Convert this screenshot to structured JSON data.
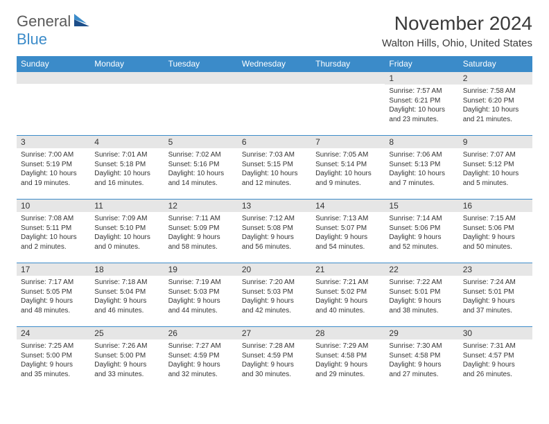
{
  "logo": {
    "word1": "General",
    "word2": "Blue"
  },
  "title": "November 2024",
  "location": "Walton Hills, Ohio, United States",
  "colors": {
    "header_bg": "#3b8bc9",
    "header_text": "#ffffff",
    "daynum_bg": "#e6e6e6",
    "border": "#3b8bc9",
    "text": "#333333",
    "page_bg": "#ffffff",
    "logo_gray": "#5a5a5a",
    "logo_blue": "#3b8bc9"
  },
  "typography": {
    "title_fontsize": 28,
    "location_fontsize": 15,
    "header_fontsize": 12,
    "daynum_fontsize": 12,
    "body_fontsize": 10
  },
  "layout": {
    "cols": 7,
    "rows": 5,
    "aspect": "792x612"
  },
  "dayNames": [
    "Sunday",
    "Monday",
    "Tuesday",
    "Wednesday",
    "Thursday",
    "Friday",
    "Saturday"
  ],
  "weeks": [
    [
      {
        "blank": true
      },
      {
        "blank": true
      },
      {
        "blank": true
      },
      {
        "blank": true
      },
      {
        "blank": true
      },
      {
        "n": "1",
        "sunrise": "Sunrise: 7:57 AM",
        "sunset": "Sunset: 6:21 PM",
        "day1": "Daylight: 10 hours",
        "day2": "and 23 minutes."
      },
      {
        "n": "2",
        "sunrise": "Sunrise: 7:58 AM",
        "sunset": "Sunset: 6:20 PM",
        "day1": "Daylight: 10 hours",
        "day2": "and 21 minutes."
      }
    ],
    [
      {
        "n": "3",
        "sunrise": "Sunrise: 7:00 AM",
        "sunset": "Sunset: 5:19 PM",
        "day1": "Daylight: 10 hours",
        "day2": "and 19 minutes."
      },
      {
        "n": "4",
        "sunrise": "Sunrise: 7:01 AM",
        "sunset": "Sunset: 5:18 PM",
        "day1": "Daylight: 10 hours",
        "day2": "and 16 minutes."
      },
      {
        "n": "5",
        "sunrise": "Sunrise: 7:02 AM",
        "sunset": "Sunset: 5:16 PM",
        "day1": "Daylight: 10 hours",
        "day2": "and 14 minutes."
      },
      {
        "n": "6",
        "sunrise": "Sunrise: 7:03 AM",
        "sunset": "Sunset: 5:15 PM",
        "day1": "Daylight: 10 hours",
        "day2": "and 12 minutes."
      },
      {
        "n": "7",
        "sunrise": "Sunrise: 7:05 AM",
        "sunset": "Sunset: 5:14 PM",
        "day1": "Daylight: 10 hours",
        "day2": "and 9 minutes."
      },
      {
        "n": "8",
        "sunrise": "Sunrise: 7:06 AM",
        "sunset": "Sunset: 5:13 PM",
        "day1": "Daylight: 10 hours",
        "day2": "and 7 minutes."
      },
      {
        "n": "9",
        "sunrise": "Sunrise: 7:07 AM",
        "sunset": "Sunset: 5:12 PM",
        "day1": "Daylight: 10 hours",
        "day2": "and 5 minutes."
      }
    ],
    [
      {
        "n": "10",
        "sunrise": "Sunrise: 7:08 AM",
        "sunset": "Sunset: 5:11 PM",
        "day1": "Daylight: 10 hours",
        "day2": "and 2 minutes."
      },
      {
        "n": "11",
        "sunrise": "Sunrise: 7:09 AM",
        "sunset": "Sunset: 5:10 PM",
        "day1": "Daylight: 10 hours",
        "day2": "and 0 minutes."
      },
      {
        "n": "12",
        "sunrise": "Sunrise: 7:11 AM",
        "sunset": "Sunset: 5:09 PM",
        "day1": "Daylight: 9 hours",
        "day2": "and 58 minutes."
      },
      {
        "n": "13",
        "sunrise": "Sunrise: 7:12 AM",
        "sunset": "Sunset: 5:08 PM",
        "day1": "Daylight: 9 hours",
        "day2": "and 56 minutes."
      },
      {
        "n": "14",
        "sunrise": "Sunrise: 7:13 AM",
        "sunset": "Sunset: 5:07 PM",
        "day1": "Daylight: 9 hours",
        "day2": "and 54 minutes."
      },
      {
        "n": "15",
        "sunrise": "Sunrise: 7:14 AM",
        "sunset": "Sunset: 5:06 PM",
        "day1": "Daylight: 9 hours",
        "day2": "and 52 minutes."
      },
      {
        "n": "16",
        "sunrise": "Sunrise: 7:15 AM",
        "sunset": "Sunset: 5:06 PM",
        "day1": "Daylight: 9 hours",
        "day2": "and 50 minutes."
      }
    ],
    [
      {
        "n": "17",
        "sunrise": "Sunrise: 7:17 AM",
        "sunset": "Sunset: 5:05 PM",
        "day1": "Daylight: 9 hours",
        "day2": "and 48 minutes."
      },
      {
        "n": "18",
        "sunrise": "Sunrise: 7:18 AM",
        "sunset": "Sunset: 5:04 PM",
        "day1": "Daylight: 9 hours",
        "day2": "and 46 minutes."
      },
      {
        "n": "19",
        "sunrise": "Sunrise: 7:19 AM",
        "sunset": "Sunset: 5:03 PM",
        "day1": "Daylight: 9 hours",
        "day2": "and 44 minutes."
      },
      {
        "n": "20",
        "sunrise": "Sunrise: 7:20 AM",
        "sunset": "Sunset: 5:03 PM",
        "day1": "Daylight: 9 hours",
        "day2": "and 42 minutes."
      },
      {
        "n": "21",
        "sunrise": "Sunrise: 7:21 AM",
        "sunset": "Sunset: 5:02 PM",
        "day1": "Daylight: 9 hours",
        "day2": "and 40 minutes."
      },
      {
        "n": "22",
        "sunrise": "Sunrise: 7:22 AM",
        "sunset": "Sunset: 5:01 PM",
        "day1": "Daylight: 9 hours",
        "day2": "and 38 minutes."
      },
      {
        "n": "23",
        "sunrise": "Sunrise: 7:24 AM",
        "sunset": "Sunset: 5:01 PM",
        "day1": "Daylight: 9 hours",
        "day2": "and 37 minutes."
      }
    ],
    [
      {
        "n": "24",
        "sunrise": "Sunrise: 7:25 AM",
        "sunset": "Sunset: 5:00 PM",
        "day1": "Daylight: 9 hours",
        "day2": "and 35 minutes."
      },
      {
        "n": "25",
        "sunrise": "Sunrise: 7:26 AM",
        "sunset": "Sunset: 5:00 PM",
        "day1": "Daylight: 9 hours",
        "day2": "and 33 minutes."
      },
      {
        "n": "26",
        "sunrise": "Sunrise: 7:27 AM",
        "sunset": "Sunset: 4:59 PM",
        "day1": "Daylight: 9 hours",
        "day2": "and 32 minutes."
      },
      {
        "n": "27",
        "sunrise": "Sunrise: 7:28 AM",
        "sunset": "Sunset: 4:59 PM",
        "day1": "Daylight: 9 hours",
        "day2": "and 30 minutes."
      },
      {
        "n": "28",
        "sunrise": "Sunrise: 7:29 AM",
        "sunset": "Sunset: 4:58 PM",
        "day1": "Daylight: 9 hours",
        "day2": "and 29 minutes."
      },
      {
        "n": "29",
        "sunrise": "Sunrise: 7:30 AM",
        "sunset": "Sunset: 4:58 PM",
        "day1": "Daylight: 9 hours",
        "day2": "and 27 minutes."
      },
      {
        "n": "30",
        "sunrise": "Sunrise: 7:31 AM",
        "sunset": "Sunset: 4:57 PM",
        "day1": "Daylight: 9 hours",
        "day2": "and 26 minutes."
      }
    ]
  ]
}
